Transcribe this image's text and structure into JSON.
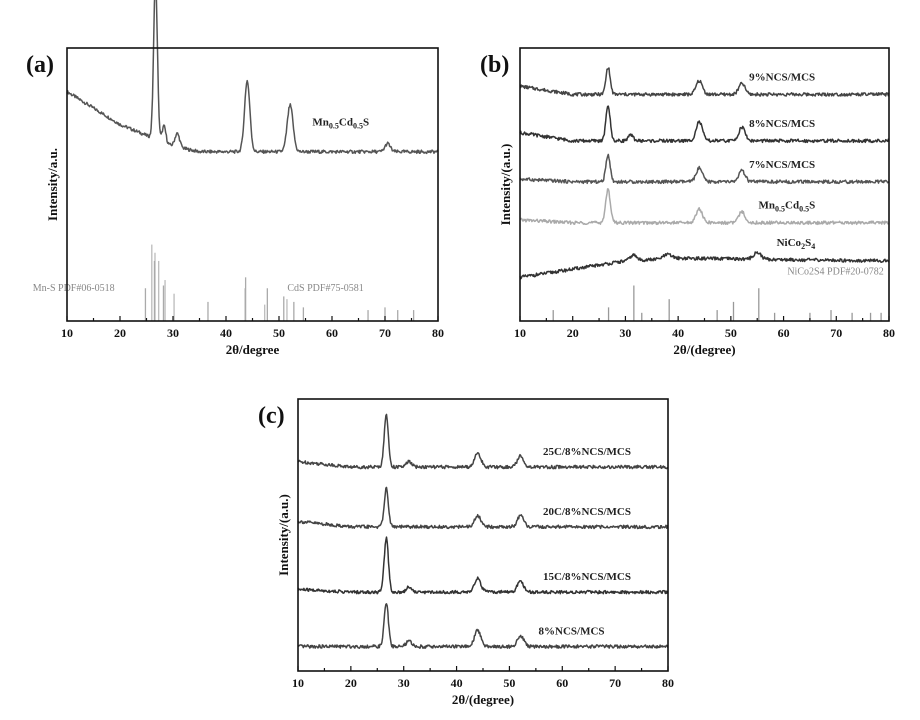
{
  "chart_data": [
    {
      "panel": "(a)",
      "type": "line",
      "xlabel": "2θ/degree",
      "ylabel": "Intensity/a.u.",
      "xlim": [
        10,
        80
      ],
      "xticks": [
        10,
        20,
        30,
        40,
        50,
        60,
        70,
        80
      ],
      "y_ticks_shown": false,
      "series": [
        {
          "name": "Mn0.5Cd0.5S",
          "label_parts": [
            [
              "Mn",
              ""
            ],
            [
              "0.5",
              "sub"
            ],
            [
              "Cd",
              ""
            ],
            [
              "0.5",
              "sub"
            ],
            [
              "S",
              ""
            ]
          ],
          "label_x": 67,
          "offset": 0.62,
          "color": "#555555",
          "background": [
            [
              10,
              0.22
            ],
            [
              15,
              0.16
            ],
            [
              20,
              0.1
            ],
            [
              25,
              0.06
            ],
            [
              30,
              0.02
            ],
            [
              35,
              0.0
            ],
            [
              45,
              0.0
            ],
            [
              60,
              0.0
            ],
            [
              80,
              0.0
            ]
          ],
          "peaks": [
            [
              26.7,
              0.58,
              0.35
            ],
            [
              28.3,
              0.06,
              0.35
            ],
            [
              30.8,
              0.05,
              0.45
            ],
            [
              44.0,
              0.26,
              0.5
            ],
            [
              52.1,
              0.17,
              0.55
            ],
            [
              70.5,
              0.03,
              0.5
            ]
          ]
        }
      ],
      "reference_sets": [
        {
          "name": "Mn-S PDF#06-0518",
          "color": "#bbbbbb",
          "label_x": 19,
          "peaks": [
            [
              26.0,
              0.28
            ],
            [
              26.6,
              0.25
            ],
            [
              27.3,
              0.22
            ],
            [
              28.5,
              0.15
            ],
            [
              30.2,
              0.1
            ],
            [
              43.6,
              0.12
            ],
            [
              47.3,
              0.06
            ],
            [
              51.5,
              0.08
            ]
          ]
        },
        {
          "name": "CdS PDF#75-0581",
          "color": "#aaaaaa",
          "label_x": 66,
          "peaks": [
            [
              24.8,
              0.12
            ],
            [
              26.5,
              0.22
            ],
            [
              28.2,
              0.13
            ],
            [
              36.6,
              0.07
            ],
            [
              43.7,
              0.16
            ],
            [
              47.8,
              0.12
            ],
            [
              50.9,
              0.09
            ],
            [
              52.8,
              0.07
            ],
            [
              54.6,
              0.05
            ],
            [
              66.8,
              0.04
            ],
            [
              70.0,
              0.05
            ],
            [
              72.4,
              0.04
            ],
            [
              75.4,
              0.04
            ]
          ]
        }
      ]
    },
    {
      "panel": "(b)",
      "type": "line",
      "xlabel": "2θ/(degree)",
      "ylabel": "Intensity/(a.u.)",
      "xlim": [
        10,
        80
      ],
      "xticks": [
        10,
        20,
        30,
        40,
        50,
        60,
        70,
        80
      ],
      "y_ticks_shown": false,
      "series": [
        {
          "name": "9%NCS/MCS",
          "label_parts": [
            [
              "9%NCS/MCS",
              ""
            ]
          ],
          "label_x": 66,
          "offset": 0.83,
          "color": "#444444",
          "background": [
            [
              10,
              0.03
            ],
            [
              20,
              0.0
            ],
            [
              80,
              0.0
            ]
          ],
          "peaks": [
            [
              26.7,
              0.1,
              0.4
            ],
            [
              44.0,
              0.05,
              0.6
            ],
            [
              52.1,
              0.04,
              0.6
            ]
          ]
        },
        {
          "name": "8%NCS/MCS",
          "label_parts": [
            [
              "8%NCS/MCS",
              ""
            ]
          ],
          "label_x": 66,
          "offset": 0.66,
          "color": "#333333",
          "background": [
            [
              10,
              0.03
            ],
            [
              20,
              0.0
            ],
            [
              80,
              0.0
            ]
          ],
          "peaks": [
            [
              26.7,
              0.13,
              0.4
            ],
            [
              31.0,
              0.02,
              0.5
            ],
            [
              44.0,
              0.07,
              0.6
            ],
            [
              52.1,
              0.05,
              0.6
            ]
          ]
        },
        {
          "name": "7%NCS/MCS",
          "label_parts": [
            [
              "7%NCS/MCS",
              ""
            ]
          ],
          "label_x": 66,
          "offset": 0.51,
          "color": "#555555",
          "background": [
            [
              10,
              0.01
            ],
            [
              20,
              0.0
            ],
            [
              80,
              0.0
            ]
          ],
          "peaks": [
            [
              26.7,
              0.1,
              0.4
            ],
            [
              44.0,
              0.05,
              0.6
            ],
            [
              52.1,
              0.04,
              0.6
            ]
          ]
        },
        {
          "name": "Mn0.5Cd0.5S",
          "label_parts": [
            [
              "Mn",
              ""
            ],
            [
              "0.5",
              "sub"
            ],
            [
              "Cd",
              ""
            ],
            [
              "0.5",
              "sub"
            ],
            [
              "S",
              ""
            ]
          ],
          "label_x": 66,
          "offset": 0.36,
          "color": "#aaaaaa",
          "background": [
            [
              10,
              0.01
            ],
            [
              20,
              0.0
            ],
            [
              80,
              0.0
            ]
          ],
          "peaks": [
            [
              26.7,
              0.12,
              0.45
            ],
            [
              44.0,
              0.05,
              0.6
            ],
            [
              52.1,
              0.04,
              0.6
            ]
          ]
        },
        {
          "name": "NiCo2S4",
          "label_parts": [
            [
              "NiCo",
              ""
            ],
            [
              "2",
              "sub"
            ],
            [
              "S",
              ""
            ],
            [
              "4",
              "sub"
            ]
          ],
          "label_x": 66,
          "offset": 0.2,
          "color": "#333333",
          "background": [
            [
              10,
              -0.04
            ],
            [
              20,
              -0.01
            ],
            [
              30,
              0.02
            ],
            [
              40,
              0.03
            ],
            [
              60,
              0.025
            ],
            [
              80,
              0.02
            ]
          ],
          "peaks": [
            [
              31.5,
              0.02,
              0.6
            ],
            [
              38.0,
              0.015,
              0.8
            ],
            [
              55.0,
              0.025,
              0.7
            ]
          ]
        }
      ],
      "reference_sets": [
        {
          "name": "NiCo2S4 PDF#20-0782",
          "color": "#999999",
          "label_x": 79,
          "peaks": [
            [
              16.3,
              0.04
            ],
            [
              26.8,
              0.05
            ],
            [
              31.6,
              0.13
            ],
            [
              33.1,
              0.03
            ],
            [
              38.3,
              0.08
            ],
            [
              47.4,
              0.04
            ],
            [
              50.5,
              0.07
            ],
            [
              55.3,
              0.12
            ],
            [
              58.3,
              0.03
            ],
            [
              65.0,
              0.03
            ],
            [
              69.0,
              0.04
            ],
            [
              73.0,
              0.03
            ],
            [
              76.5,
              0.03
            ],
            [
              78.5,
              0.03
            ]
          ]
        }
      ]
    },
    {
      "panel": "(c)",
      "type": "line",
      "xlabel": "2θ/(degree)",
      "ylabel": "Intensity/(a.u.)",
      "xlim": [
        10,
        80
      ],
      "xticks": [
        10,
        20,
        30,
        40,
        50,
        60,
        70,
        80
      ],
      "y_ticks_shown": false,
      "series": [
        {
          "name": "25C/8%NCS/MCS",
          "label_parts": [
            [
              "25C/8%NCS/MCS",
              ""
            ]
          ],
          "label_x": 73,
          "offset": 0.75,
          "color": "#444444",
          "background": [
            [
              10,
              0.02
            ],
            [
              20,
              0.0
            ],
            [
              80,
              0.0
            ]
          ],
          "peaks": [
            [
              26.7,
              0.19,
              0.4
            ],
            [
              31.0,
              0.02,
              0.5
            ],
            [
              44.0,
              0.05,
              0.6
            ],
            [
              52.1,
              0.04,
              0.6
            ]
          ]
        },
        {
          "name": "20C/8%NCS/MCS",
          "label_parts": [
            [
              "20C/8%NCS/MCS",
              ""
            ]
          ],
          "label_x": 73,
          "offset": 0.53,
          "color": "#444444",
          "background": [
            [
              10,
              0.02
            ],
            [
              20,
              0.0
            ],
            [
              80,
              0.0
            ]
          ],
          "peaks": [
            [
              26.7,
              0.14,
              0.4
            ],
            [
              44.0,
              0.04,
              0.6
            ],
            [
              52.1,
              0.04,
              0.6
            ]
          ]
        },
        {
          "name": "15C/8%NCS/MCS",
          "label_parts": [
            [
              "15C/8%NCS/MCS",
              ""
            ]
          ],
          "label_x": 73,
          "offset": 0.29,
          "color": "#333333",
          "background": [
            [
              10,
              0.01
            ],
            [
              20,
              0.0
            ],
            [
              80,
              0.0
            ]
          ],
          "peaks": [
            [
              26.7,
              0.2,
              0.4
            ],
            [
              31.0,
              0.02,
              0.5
            ],
            [
              44.0,
              0.05,
              0.6
            ],
            [
              52.1,
              0.04,
              0.6
            ]
          ]
        },
        {
          "name": "8%NCS/MCS",
          "label_parts": [
            [
              "8%NCS/MCS",
              ""
            ]
          ],
          "label_x": 68,
          "offset": 0.09,
          "color": "#444444",
          "background": [
            [
              10,
              0.0
            ],
            [
              20,
              0.0
            ],
            [
              80,
              0.0
            ]
          ],
          "peaks": [
            [
              26.7,
              0.16,
              0.4
            ],
            [
              31.0,
              0.02,
              0.5
            ],
            [
              44.0,
              0.06,
              0.6
            ],
            [
              52.1,
              0.04,
              0.6
            ]
          ]
        }
      ],
      "reference_sets": []
    }
  ]
}
